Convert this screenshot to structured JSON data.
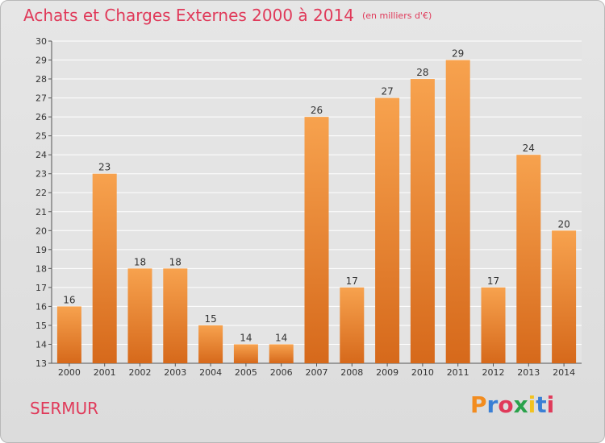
{
  "title": "Achats et Charges Externes 2000 à 2014",
  "unit": "(en milliers d'€)",
  "commune": "SERMUR",
  "logo": {
    "text": "Proxiti",
    "colors": [
      "#f28c1f",
      "#3a7fd5",
      "#e03a5a",
      "#2aa24b",
      "#f2c21f",
      "#3a7fd5",
      "#e03a5a"
    ]
  },
  "colors": {
    "bar_top": "#f7a24e",
    "bar_bottom": "#d6691b",
    "title": "#e03a5a",
    "text": "#333333"
  },
  "chart_data": {
    "type": "bar",
    "title": "Achats et Charges Externes 2000 à 2014",
    "categories": [
      "2000",
      "2001",
      "2002",
      "2003",
      "2004",
      "2005",
      "2006",
      "2007",
      "2008",
      "2009",
      "2010",
      "2011",
      "2012",
      "2013",
      "2014"
    ],
    "values": [
      16,
      23,
      18,
      18,
      15,
      14,
      14,
      26,
      17,
      27,
      28,
      29,
      17,
      24,
      20
    ],
    "ylim": [
      13,
      30
    ],
    "yticks": [
      13,
      14,
      15,
      16,
      17,
      18,
      19,
      20,
      21,
      22,
      23,
      24,
      25,
      26,
      27,
      28,
      29,
      30
    ],
    "grid": true
  }
}
